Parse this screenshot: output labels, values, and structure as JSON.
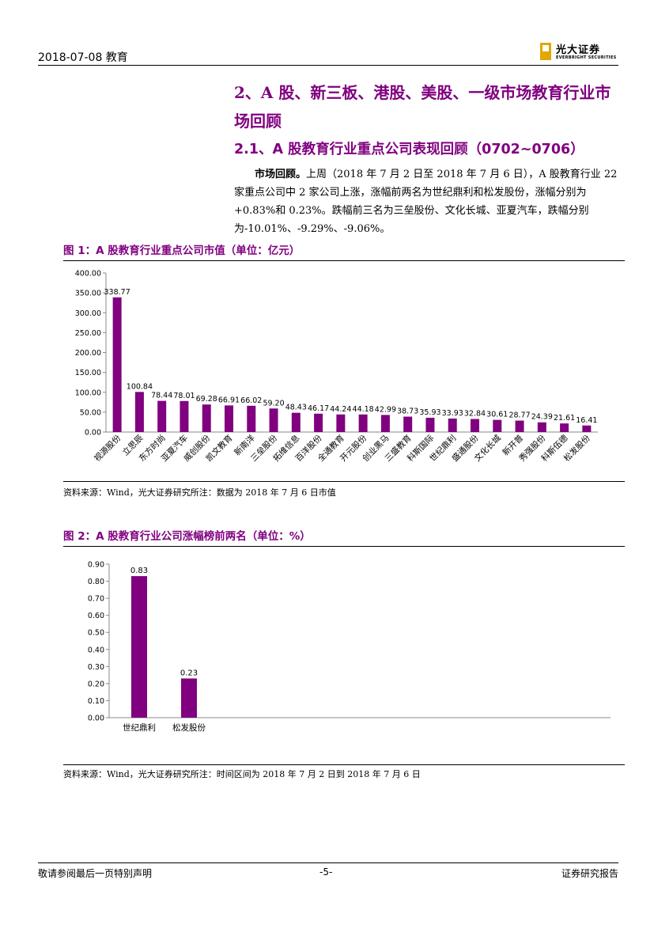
{
  "header": {
    "date_section": "2018-07-08 教育",
    "logo_cn": "光大证券",
    "logo_en": "EVERBRIGHT SECURITIES"
  },
  "section": {
    "title": "2、A 股、新三板、港股、美股、一级市场教育行业市场回顾",
    "subtitle": "2.1、A 股教育行业重点公司表现回顾（0702~0706）",
    "para_lead": "市场回顾。",
    "para_text": "上周（2018 年 7 月 2 日至 2018 年 7 月 6 日），A 股教育行业 22 家重点公司中 2 家公司上涨，涨幅前两名为世纪鼎利和松发股份，涨幅分别为+0.83%和 0.23%。跌幅前三名为三垒股份、文化长城、亚夏汽车，跌幅分别为-10.01%、-9.29%、-9.06%。"
  },
  "figure1": {
    "title": "图 1：A 股教育行业重点公司市值（单位：亿元）",
    "source": "资料来源：Wind，光大证券研究所注：数据为 2018 年 7 月 6 日市值"
  },
  "figure2": {
    "title": "图 2：A 股教育行业公司涨幅榜前两名（单位：%）",
    "source": "资料来源：Wind，光大证券研究所注：时间区间为 2018 年 7 月 2 日到 2018 年 7 月 6 日"
  },
  "footer": {
    "left": "敬请参阅最后一页特别声明",
    "center": "-5-",
    "right": "证券研究报告"
  },
  "colors": {
    "accent": "#800080",
    "bar": "#800080"
  },
  "chart_data": [
    {
      "type": "bar",
      "categories": [
        "视源股份",
        "立思辰",
        "东方时尚",
        "亚夏汽车",
        "威创股份",
        "凯文教育",
        "新南洋",
        "三垒股份",
        "拓维信息",
        "百洋股份",
        "全通教育",
        "开元股份",
        "创业黑马",
        "三盛教育",
        "科斯国际",
        "世纪鼎利",
        "盛通股份",
        "文化长城",
        "新开普",
        "秀强股份",
        "科斯伍德",
        "松发股份"
      ],
      "values": [
        338.77,
        100.84,
        78.44,
        78.01,
        69.28,
        66.91,
        66.02,
        59.2,
        48.43,
        46.17,
        44.24,
        44.18,
        42.99,
        38.73,
        35.93,
        33.93,
        32.84,
        30.61,
        28.77,
        24.39,
        21.61,
        16.41
      ],
      "data_labels": [
        "338.77",
        "100.84",
        "78.44",
        "78.01",
        "69.28",
        "66.91",
        "66.02",
        "59.20",
        "48.43",
        "46.17",
        "44.24",
        "44.18",
        "42.99",
        "38.73",
        "35.93",
        "33.93",
        "32.84",
        "30.61",
        "28.77",
        "24.39",
        "21.61",
        "16.41"
      ],
      "ylim": [
        0,
        400
      ],
      "yticks": [
        "0.00",
        "50.00",
        "100.00",
        "150.00",
        "200.00",
        "250.00",
        "300.00",
        "350.00",
        "400.00"
      ],
      "grid": false
    },
    {
      "type": "bar",
      "categories": [
        "世纪鼎利",
        "松发股份"
      ],
      "values": [
        0.83,
        0.23
      ],
      "data_labels": [
        "0.83",
        "0.23"
      ],
      "ylim": [
        0,
        0.9
      ],
      "yticks": [
        "0.00",
        "0.10",
        "0.20",
        "0.30",
        "0.40",
        "0.50",
        "0.60",
        "0.70",
        "0.80",
        "0.90"
      ],
      "grid": false
    }
  ]
}
